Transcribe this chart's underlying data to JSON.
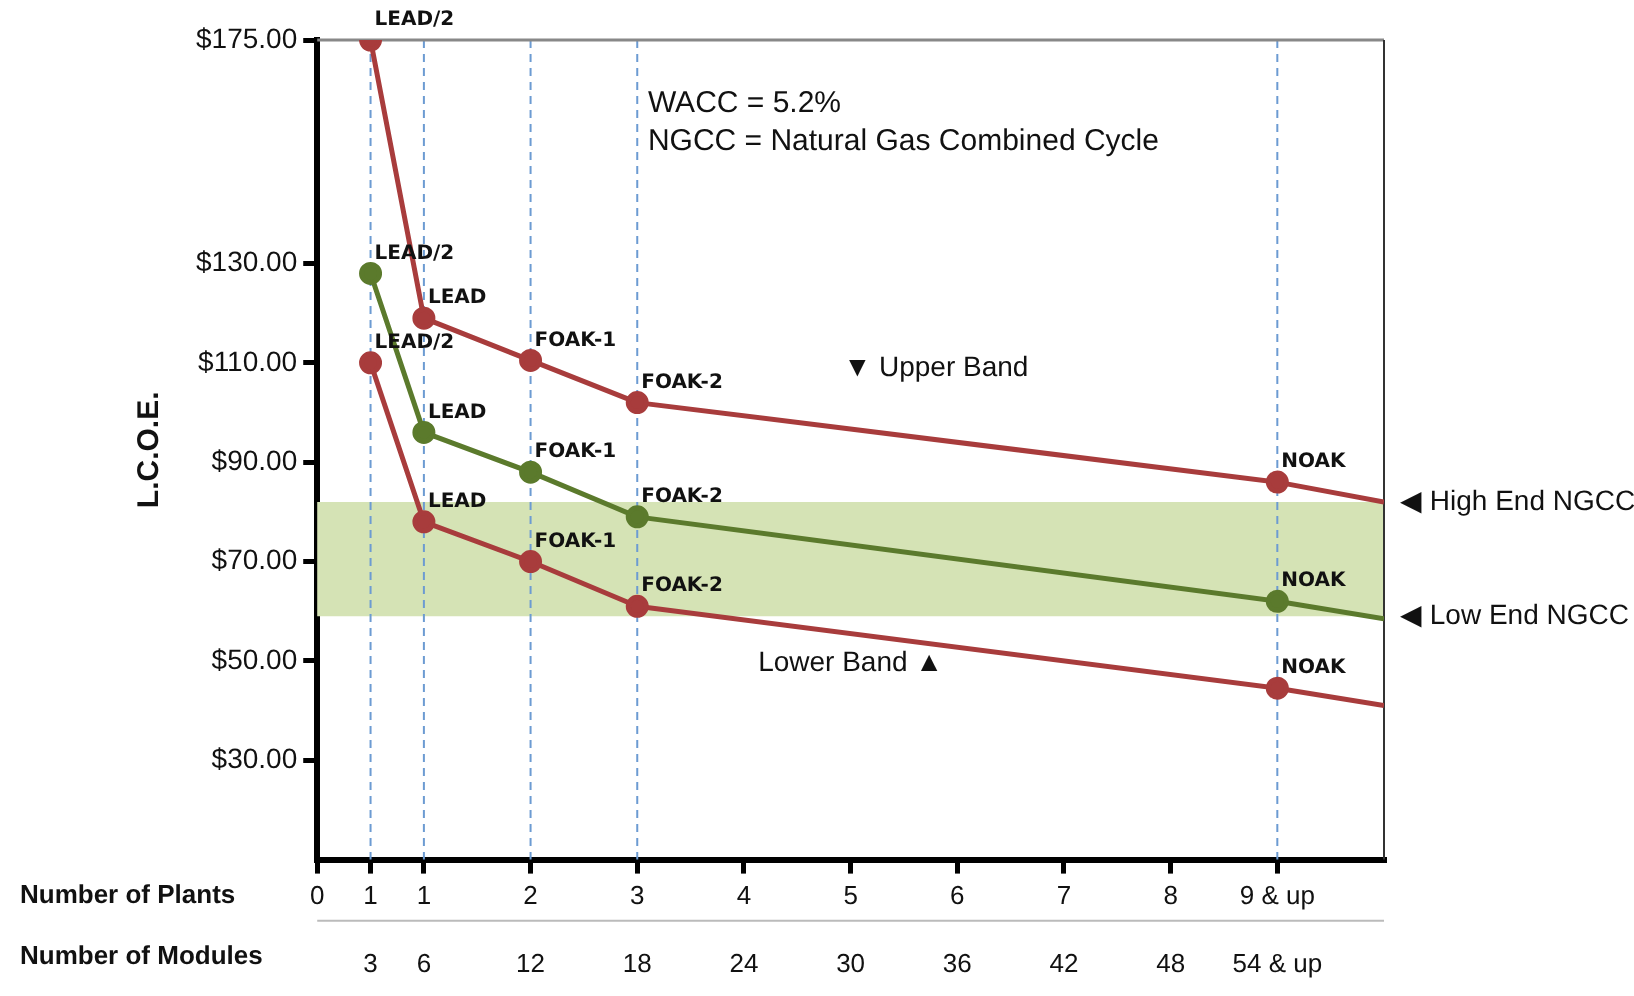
{
  "chart_data": {
    "type": "line",
    "ylabel": "L.C.O.E.",
    "xlabel": "Number of Modules",
    "x2label": "Number of Plants",
    "xlim": [
      0,
      60
    ],
    "x2lim": [
      0,
      10
    ],
    "ylim": [
      10,
      175
    ],
    "xticks": [
      3,
      6,
      12,
      18,
      24,
      30,
      36,
      42,
      48,
      {
        "value": 54,
        "label": "54 & up"
      }
    ],
    "x2ticks": [
      0,
      {
        "value": 0.5,
        "label": "1"
      },
      1,
      2,
      3,
      4,
      5,
      6,
      7,
      8,
      {
        "value": 9,
        "label": "9 & up"
      }
    ],
    "yticks": [
      {
        "value": 30,
        "label": "$30.00"
      },
      {
        "value": 50,
        "label": "$50.00"
      },
      {
        "value": 70,
        "label": "$70.00"
      },
      {
        "value": 90,
        "label": "$90.00"
      },
      {
        "value": 110,
        "label": "$110.00"
      },
      {
        "value": 130,
        "label": "$130.00"
      },
      {
        "value": 175,
        "label": "$175.00"
      }
    ],
    "series": [
      {
        "color": "#a83c3c",
        "marker": "circle",
        "x": [
          3,
          6,
          12,
          18,
          54
        ],
        "values": [
          175,
          119,
          110.5,
          102,
          86
        ]
      },
      {
        "color": "#a83c3c",
        "marker": "none",
        "x": [
          54,
          60
        ],
        "values": [
          86,
          82
        ]
      },
      {
        "color": "#5b7a2c",
        "marker": "circle",
        "x": [
          3,
          6,
          12,
          18,
          54
        ],
        "values": [
          128,
          96,
          88,
          79,
          62
        ]
      },
      {
        "color": "#5b7a2c",
        "marker": "none",
        "x": [
          54,
          60
        ],
        "values": [
          62,
          58.5
        ]
      },
      {
        "color": "#a83c3c",
        "marker": "circle",
        "x": [
          3,
          6,
          12,
          18,
          54
        ],
        "values": [
          110,
          78,
          70,
          61,
          44.5
        ]
      },
      {
        "color": "#a83c3c",
        "marker": "none",
        "x": [
          54,
          60
        ],
        "values": [
          44.5,
          41
        ]
      }
    ],
    "bands": [
      {
        "axis": "y",
        "from": 59,
        "to": 82,
        "color": "#d5e3b5"
      }
    ],
    "ref_lines": [
      {
        "axis": "x",
        "value": 3,
        "color": "#6c9bd2",
        "line_style": "dashed"
      },
      {
        "axis": "x",
        "value": 6,
        "color": "#6c9bd2",
        "line_style": "dashed"
      },
      {
        "axis": "x",
        "value": 12,
        "color": "#6c9bd2",
        "line_style": "dashed"
      },
      {
        "axis": "x",
        "value": 18,
        "color": "#6c9bd2",
        "line_style": "dashed"
      },
      {
        "axis": "x",
        "value": 54,
        "color": "#6c9bd2",
        "line_style": "dashed"
      }
    ],
    "annotations": [
      "WACC = 5.2%",
      "NGCC = Natural Gas Combined Cycle",
      {
        "text": "LEAD/2",
        "x": 3,
        "y": 175
      },
      {
        "text": "LEAD",
        "x": 6,
        "y": 119
      },
      {
        "text": "FOAK-1",
        "x": 12,
        "y": 110.5
      },
      {
        "text": "FOAK-2",
        "x": 18,
        "y": 102
      },
      {
        "text": "NOAK",
        "x": 54,
        "y": 86
      },
      {
        "text": "LEAD/2",
        "x": 3,
        "y": 128
      },
      {
        "text": "LEAD",
        "x": 6,
        "y": 96
      },
      {
        "text": "FOAK-1",
        "x": 12,
        "y": 88
      },
      {
        "text": "FOAK-2",
        "x": 18,
        "y": 79
      },
      {
        "text": "NOAK",
        "x": 54,
        "y": 62
      },
      {
        "text": "LEAD/2",
        "x": 3,
        "y": 110
      },
      {
        "text": "LEAD",
        "x": 6,
        "y": 78
      },
      {
        "text": "FOAK-1",
        "x": 12,
        "y": 70
      },
      {
        "text": "FOAK-2",
        "x": 18,
        "y": 61
      },
      {
        "text": "NOAK",
        "x": 54,
        "y": 44.5
      },
      "▼ Upper Band",
      "Lower Band ▲",
      {
        "text": "◀ High End NGCC",
        "x": 60,
        "y": 82
      },
      {
        "text": "◀ Low End NGCC",
        "x": 60,
        "y": 59
      }
    ]
  }
}
